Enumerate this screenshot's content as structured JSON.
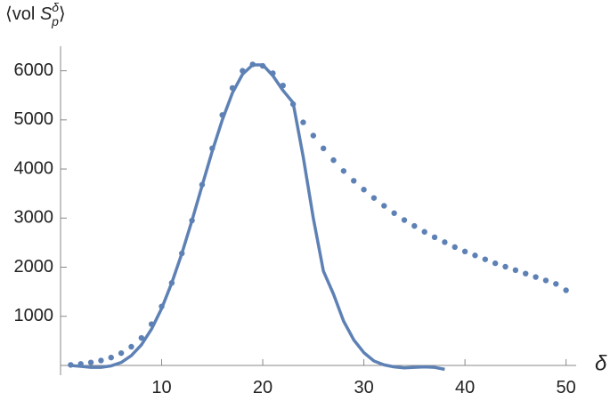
{
  "chart_data": {
    "type": "line",
    "y_label": {
      "open": "⟨vol ",
      "var": "S",
      "sub": "p",
      "sup": "δ",
      "close": "⟩"
    },
    "x_label": "δ",
    "xlim": [
      0,
      51
    ],
    "ylim": [
      -200,
      6500
    ],
    "xticks": [
      10,
      20,
      30,
      40,
      50
    ],
    "yticks": [
      1000,
      2000,
      3000,
      4000,
      5000,
      6000
    ],
    "series": [
      {
        "style": "dots",
        "color": "#5e81b5",
        "x": [
          1,
          2,
          3,
          4,
          5,
          6,
          7,
          8,
          9,
          10,
          11,
          12,
          13,
          14,
          15,
          16,
          17,
          18,
          19,
          20,
          21,
          22,
          23,
          24,
          25,
          26,
          27,
          28,
          29,
          30,
          31,
          32,
          33,
          34,
          35,
          36,
          37,
          38,
          39,
          40,
          41,
          42,
          43,
          44,
          45,
          46,
          47,
          48,
          49,
          50
        ],
        "values": [
          10,
          30,
          60,
          100,
          160,
          250,
          380,
          560,
          840,
          1200,
          1680,
          2280,
          2950,
          3680,
          4420,
          5100,
          5650,
          6000,
          6130,
          6100,
          5950,
          5700,
          5320,
          4950,
          4680,
          4420,
          4180,
          3960,
          3760,
          3580,
          3410,
          3250,
          3100,
          2960,
          2840,
          2720,
          2610,
          2510,
          2410,
          2320,
          2240,
          2160,
          2080,
          2010,
          1940,
          1870,
          1800,
          1730,
          1660,
          1530
        ]
      },
      {
        "style": "line",
        "color": "#5e81b5",
        "x": [
          1,
          2,
          3,
          4,
          5,
          6,
          7,
          8,
          9,
          10,
          11,
          12,
          13,
          14,
          15,
          16,
          17,
          18,
          19,
          20,
          21,
          22,
          23,
          24,
          25,
          26,
          27,
          28,
          29,
          30,
          31,
          32,
          33,
          34,
          35,
          36,
          37,
          38
        ],
        "values": [
          0,
          -20,
          -40,
          -40,
          -10,
          60,
          200,
          420,
          740,
          1160,
          1680,
          2280,
          2950,
          3660,
          4360,
          5000,
          5550,
          5930,
          6120,
          6120,
          5900,
          5600,
          5350,
          4250,
          3000,
          1920,
          1450,
          900,
          520,
          260,
          90,
          10,
          -30,
          -50,
          -40,
          -30,
          -40,
          -80
        ]
      }
    ]
  }
}
